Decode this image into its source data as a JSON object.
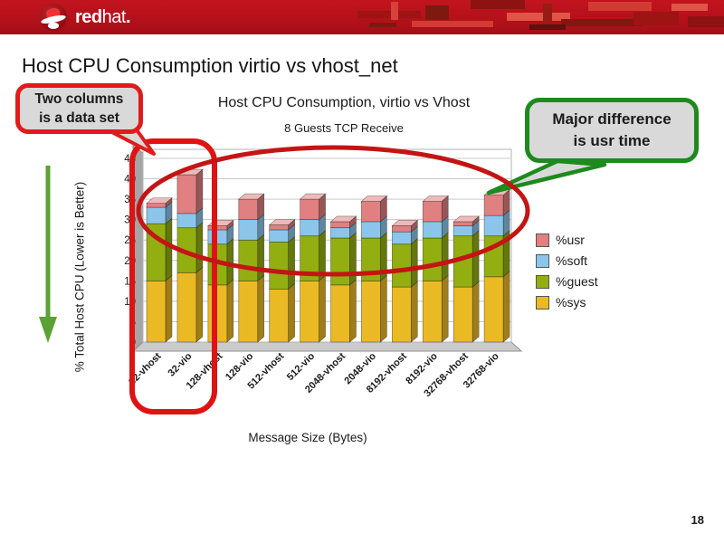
{
  "banner": {
    "logo_red": "red",
    "logo_hat": "hat",
    "logo_dot": "."
  },
  "slide": {
    "title": "Host CPU Consumption virtio vs vhost_net",
    "page_number": "18"
  },
  "callouts": {
    "two_columns": {
      "line1": "Two columns",
      "line2": "is a data set"
    },
    "major_difference": {
      "line1": "Major difference",
      "line2": "is usr time"
    }
  },
  "chart_data": {
    "type": "bar",
    "stacked": true,
    "title": "Host CPU Consumption, virtio vs Vhost",
    "subtitle": "8 Guests TCP Receive",
    "xlabel": "Message Size (Bytes)",
    "ylabel": "% Total Host CPU (Lower is Better)",
    "ylim": [
      0,
      45
    ],
    "ytick_step": 5,
    "grid": true,
    "legend_position": "right",
    "legend": [
      "%usr",
      "%soft",
      "%guest",
      "%sys"
    ],
    "categories": [
      "32-vhost",
      "32-vio",
      "128-vhost",
      "128-vio",
      "512-vhost",
      "512-vio",
      "2048-vhost",
      "2048-vio",
      "8192-vhost",
      "8192-vio",
      "32768-vhost",
      "32768-vio"
    ],
    "series": [
      {
        "name": "%sys",
        "color": "#eaba25",
        "values": [
          15,
          17,
          14,
          15,
          13,
          15,
          14,
          15,
          13.5,
          15,
          13.5,
          16
        ]
      },
      {
        "name": "%guest",
        "color": "#93ae11",
        "values": [
          14,
          11,
          10,
          10,
          11.5,
          11,
          11.5,
          10.5,
          10.5,
          10.5,
          12.5,
          10
        ]
      },
      {
        "name": "%soft",
        "color": "#8cc5ea",
        "values": [
          4,
          3.5,
          3.5,
          5,
          3,
          4,
          2.5,
          4,
          3,
          4,
          2.5,
          5
        ]
      },
      {
        "name": "%usr",
        "color": "#e08080",
        "values": [
          1,
          9.5,
          1,
          5,
          1.2,
          5,
          1.5,
          5,
          1.5,
          5,
          1,
          5
        ]
      }
    ]
  },
  "annotation_colors": {
    "red": "#cc1111",
    "green": "#2a8c1e",
    "arrow_green": "#5ba133"
  }
}
